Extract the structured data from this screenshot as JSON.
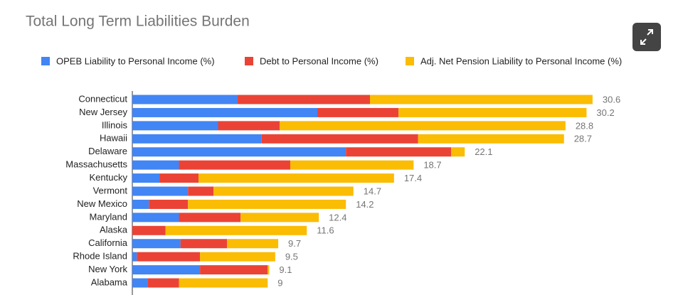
{
  "chart_data": {
    "type": "bar",
    "orientation": "horizontal",
    "stacked": true,
    "title": "Total Long Term Liabilities Burden",
    "categories": [
      "Connecticut",
      "New Jersey",
      "Illinois",
      "Hawaii",
      "Delaware",
      "Massachusetts",
      "Kentucky",
      "Vermont",
      "New Mexico",
      "Maryland",
      "Alaska",
      "California",
      "Rhode Island",
      "New York",
      "Alabama"
    ],
    "series": [
      {
        "name": "OPEB Liability to Personal Income (%)",
        "color": "#4285f4",
        "values": [
          7.0,
          12.3,
          5.7,
          8.6,
          14.2,
          3.1,
          1.8,
          3.7,
          1.1,
          3.1,
          0,
          3.2,
          0.3,
          4.5,
          1.0
        ]
      },
      {
        "name": "Debt to Personal Income (%)",
        "color": "#ea4335",
        "values": [
          8.8,
          5.4,
          4.1,
          10.4,
          7.0,
          7.4,
          2.6,
          1.7,
          2.6,
          4.1,
          2.2,
          3.1,
          4.2,
          4.5,
          2.1
        ]
      },
      {
        "name": "Adj. Net Pension Liability to Personal Income (%)",
        "color": "#fbbc04",
        "values": [
          14.8,
          12.5,
          19.0,
          9.7,
          0.9,
          8.2,
          13.0,
          9.3,
          10.5,
          5.2,
          9.4,
          3.4,
          5.0,
          0.1,
          5.9
        ]
      }
    ],
    "totals": [
      30.6,
      30.2,
      28.8,
      28.7,
      22.1,
      18.7,
      17.4,
      14.7,
      14.2,
      12.4,
      11.6,
      9.7,
      9.5,
      9.1,
      9
    ],
    "xlim": [
      0,
      35
    ]
  }
}
